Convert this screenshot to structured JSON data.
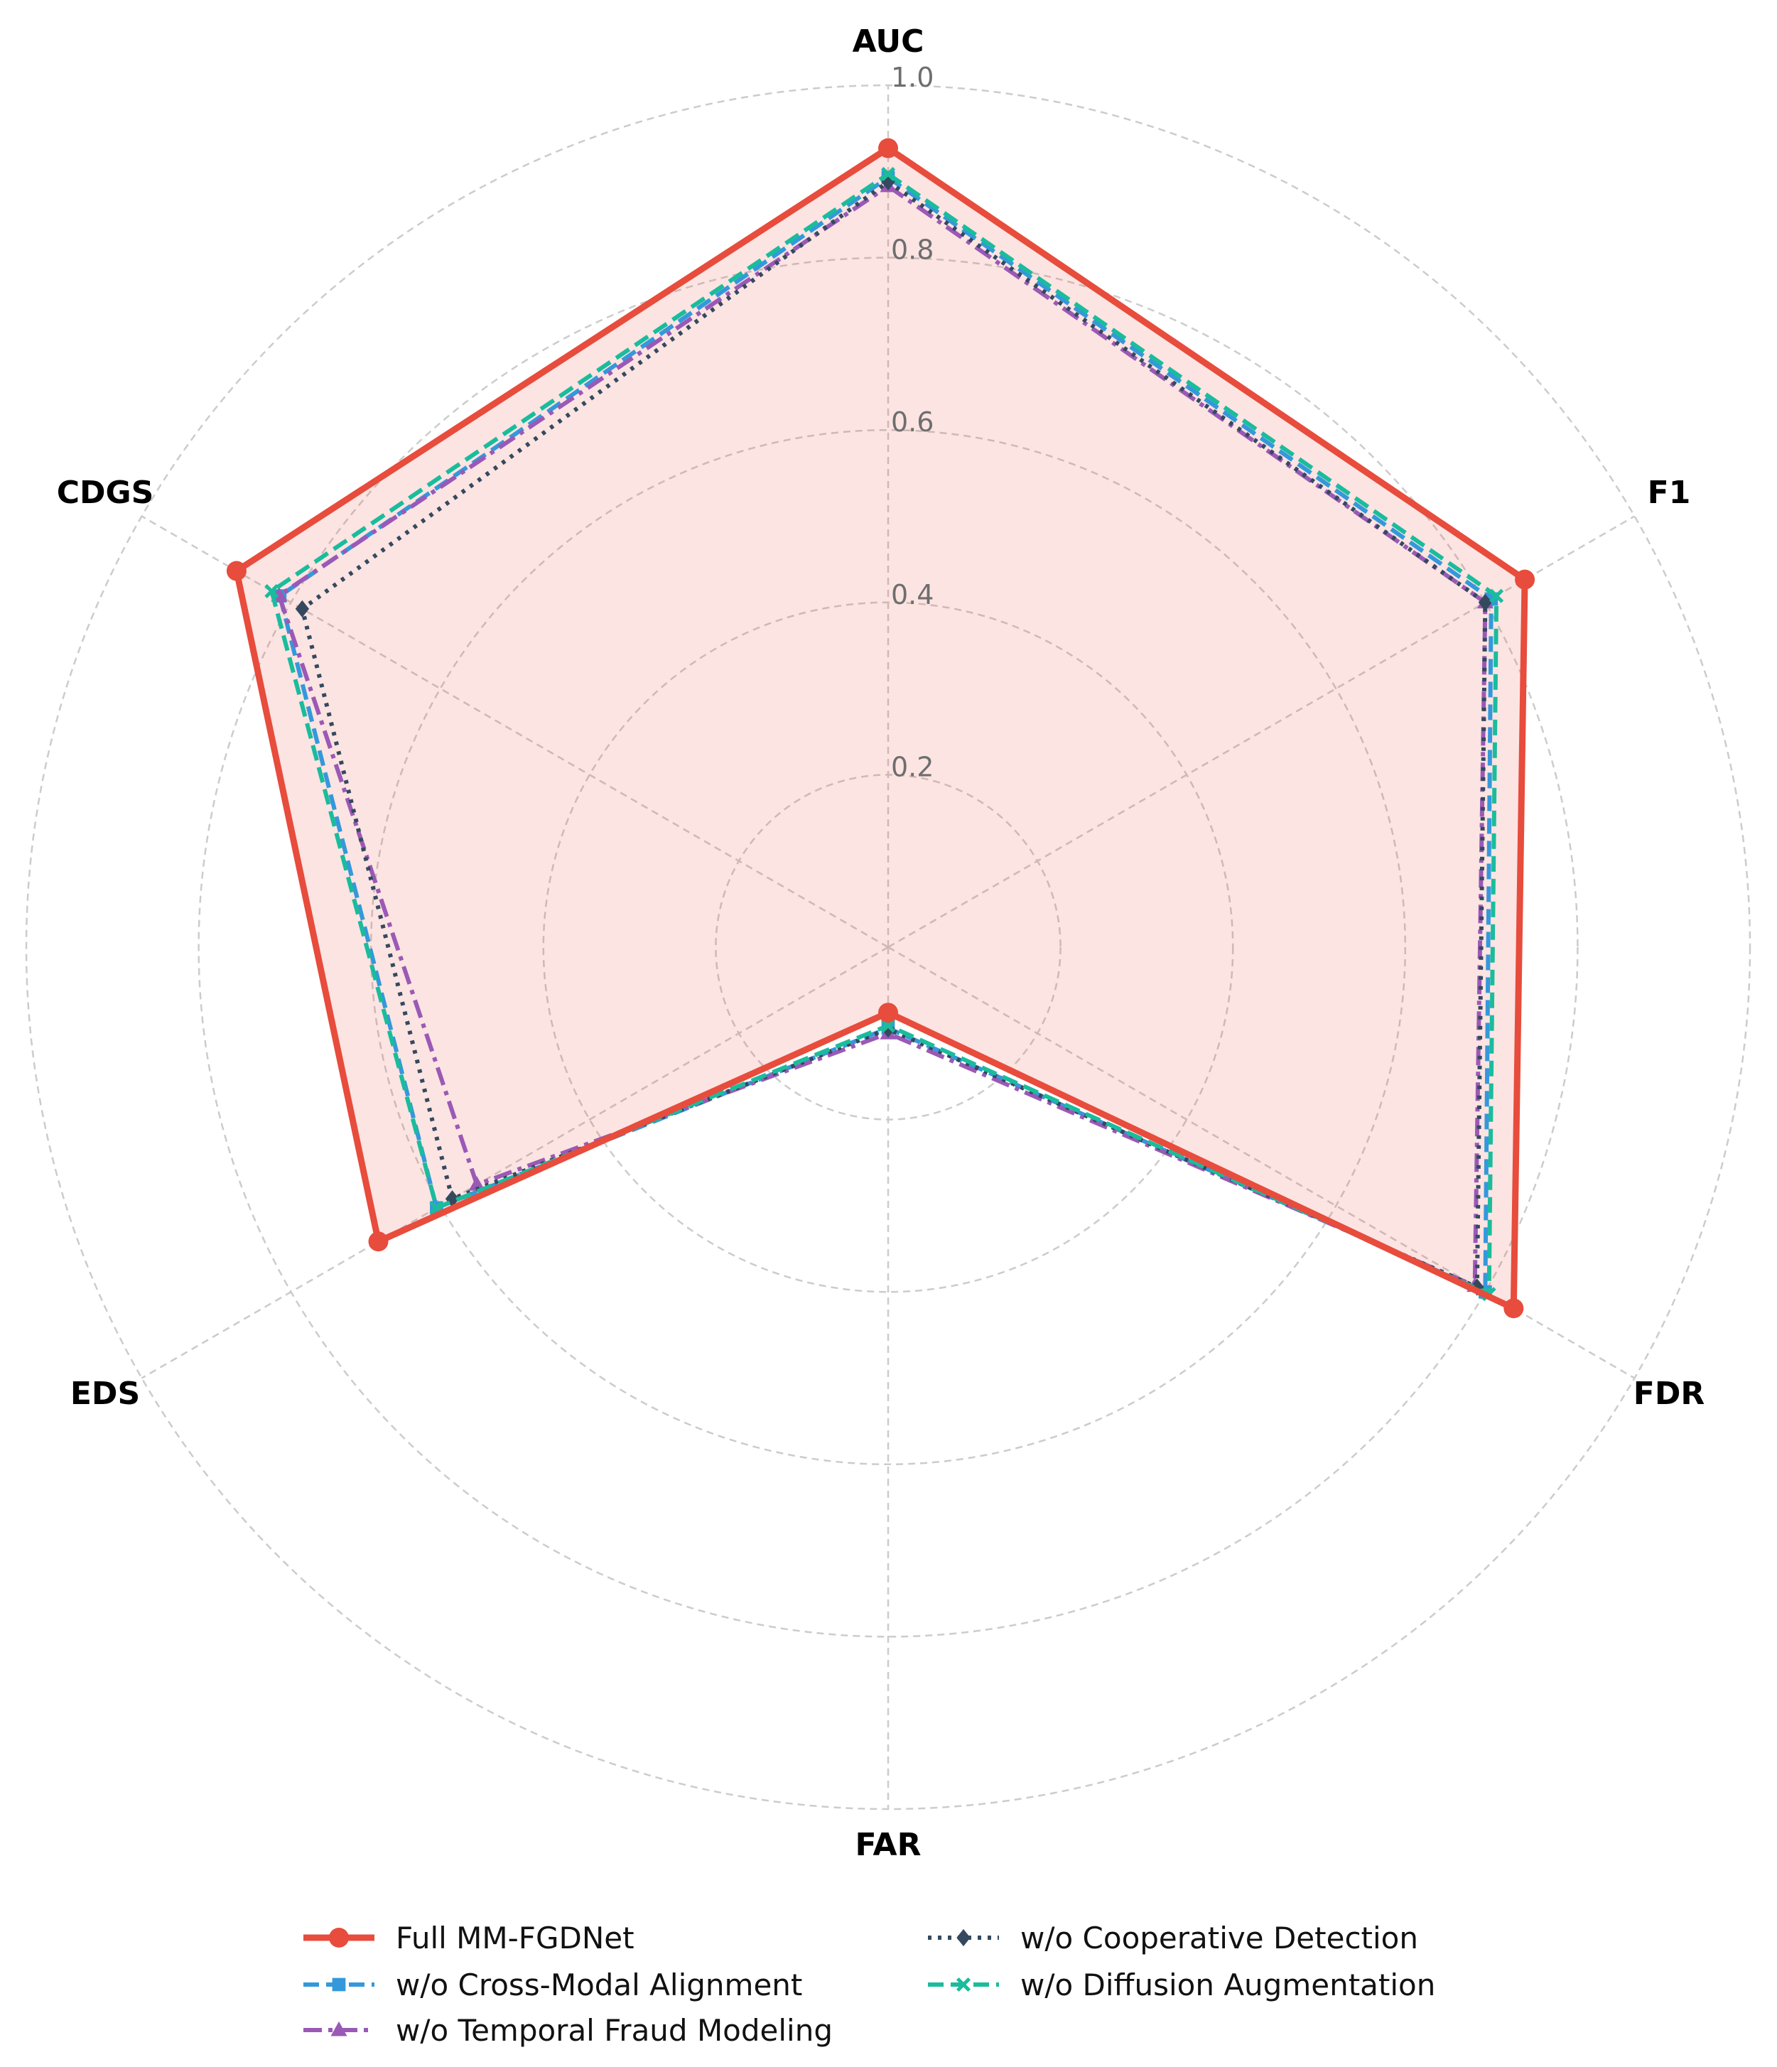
{
  "chart_data": {
    "type": "radar",
    "axes": [
      "AUC",
      "F1",
      "FDR",
      "FAR",
      "EDS",
      "CDGS"
    ],
    "rlim": [
      0,
      1.0
    ],
    "ticks": [
      "0.2",
      "0.4",
      "0.6",
      "0.8",
      "1.0"
    ],
    "tick_values": [
      0.2,
      0.4,
      0.6,
      0.8,
      1.0
    ],
    "grid": true,
    "legend_position": "bottom",
    "series": [
      {
        "name": "Full MM-FGDNet",
        "values": [
          0.927,
          0.853,
          0.838,
          0.076,
          0.683,
          0.873
        ],
        "color": "#e74c3c",
        "marker": "circle",
        "dash": "solid",
        "fill": true
      },
      {
        "name": "w/o Cross-Modal Alignment",
        "values": [
          0.893,
          0.808,
          0.8,
          0.094,
          0.605,
          0.815
        ],
        "color": "#3498db",
        "marker": "square",
        "dash": "dashed",
        "fill": false
      },
      {
        "name": "w/o Temporal Fraud Modeling",
        "values": [
          0.883,
          0.8,
          0.786,
          0.1,
          0.551,
          0.816
        ],
        "color": "#9b59b6",
        "marker": "triangle",
        "dash": "dashdot",
        "fill": false
      },
      {
        "name": "w/o Cooperative Detection",
        "values": [
          0.888,
          0.8,
          0.789,
          0.095,
          0.584,
          0.785
        ],
        "color": "#34495e",
        "marker": "diamond",
        "dash": "dotted",
        "fill": false
      },
      {
        "name": "w/o Diffusion Augmentation",
        "values": [
          0.897,
          0.815,
          0.805,
          0.091,
          0.605,
          0.826
        ],
        "color": "#1abc9c",
        "marker": "x",
        "dash": "dashed",
        "fill": false
      }
    ]
  }
}
